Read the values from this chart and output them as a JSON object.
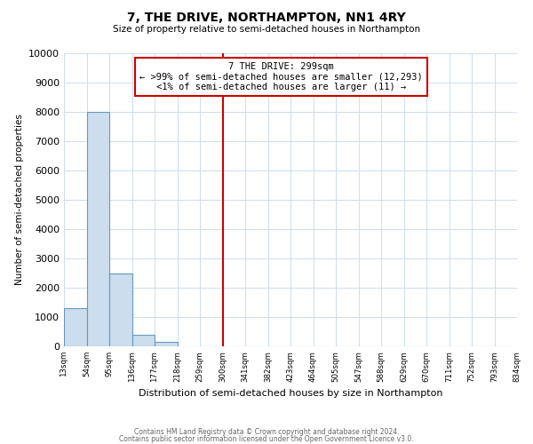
{
  "title": "7, THE DRIVE, NORTHAMPTON, NN1 4RY",
  "subtitle": "Size of property relative to semi-detached houses in Northampton",
  "xlabel": "Distribution of semi-detached houses by size in Northampton",
  "ylabel": "Number of semi-detached properties",
  "bar_values": [
    1300,
    8000,
    2500,
    400,
    150,
    0,
    0,
    0,
    0,
    0,
    0,
    0,
    0,
    0,
    0,
    0,
    0,
    0,
    0,
    0
  ],
  "bar_labels": [
    "13sqm",
    "54sqm",
    "95sqm",
    "136sqm",
    "177sqm",
    "218sqm",
    "259sqm",
    "300sqm",
    "341sqm",
    "382sqm",
    "423sqm",
    "464sqm",
    "505sqm",
    "547sqm",
    "588sqm",
    "629sqm",
    "670sqm",
    "711sqm",
    "752sqm",
    "793sqm",
    "834sqm"
  ],
  "bar_color": "#ccdded",
  "bar_edge_color": "#6699bb",
  "vline_color": "#cc0000",
  "annotation_box_text": "7 THE DRIVE: 299sqm\n← >99% of semi-detached houses are smaller (12,293)\n<1% of semi-detached houses are larger (11) →",
  "annotation_box_edge_color": "#cc0000",
  "ylim": [
    0,
    10000
  ],
  "yticks": [
    0,
    1000,
    2000,
    3000,
    4000,
    5000,
    6000,
    7000,
    8000,
    9000,
    10000
  ],
  "footer_line1": "Contains HM Land Registry data © Crown copyright and database right 2024.",
  "footer_line2": "Contains public sector information licensed under the Open Government Licence v3.0.",
  "background_color": "#ffffff",
  "grid_color": "#ccddee"
}
